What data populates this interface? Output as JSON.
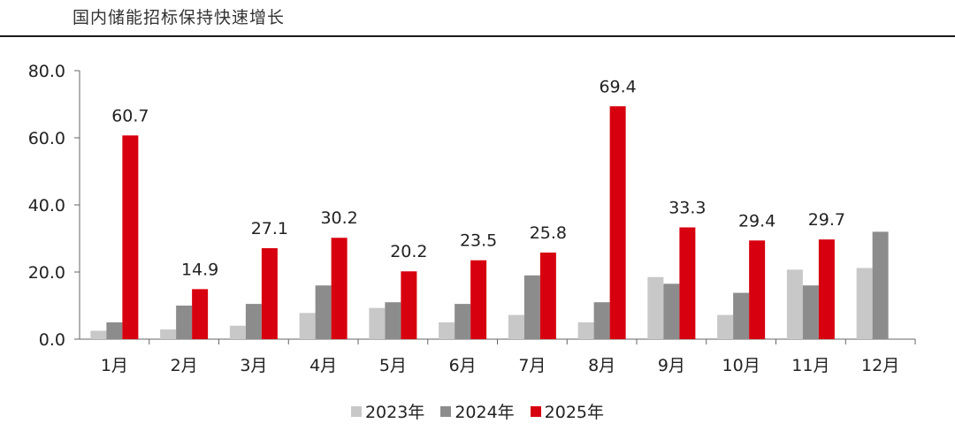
{
  "title": "国内储能招标保持快速增长",
  "chart_data": {
    "type": "bar",
    "categories": [
      "1月",
      "2月",
      "3月",
      "4月",
      "5月",
      "6月",
      "7月",
      "8月",
      "9月",
      "10月",
      "11月",
      "12月"
    ],
    "ylim": [
      0,
      80
    ],
    "yticks": [
      "0.0",
      "20.0",
      "40.0",
      "60.0",
      "80.0"
    ],
    "series": [
      {
        "name": "2023年",
        "color": "#c8c8c8",
        "values": [
          2.5,
          2.9,
          4.0,
          7.8,
          9.3,
          5.0,
          7.2,
          5.0,
          18.5,
          7.2,
          20.7,
          21.2
        ]
      },
      {
        "name": "2024年",
        "color": "#8c8c8c",
        "values": [
          5.0,
          10.0,
          10.5,
          16.0,
          11.0,
          10.5,
          19.0,
          11.0,
          16.5,
          13.8,
          16.0,
          32.0
        ]
      },
      {
        "name": "2025年",
        "color": "#d7000f",
        "values": [
          60.7,
          14.9,
          27.1,
          30.2,
          20.2,
          23.5,
          25.8,
          69.4,
          33.3,
          29.4,
          29.7,
          null
        ]
      }
    ],
    "data_labels": [
      "60.7",
      "14.9",
      "27.1",
      "30.2",
      "20.2",
      "23.5",
      "25.8",
      "69.4",
      "33.3",
      "29.4",
      "29.7",
      ""
    ],
    "grid": false,
    "legend_position": "bottom"
  }
}
